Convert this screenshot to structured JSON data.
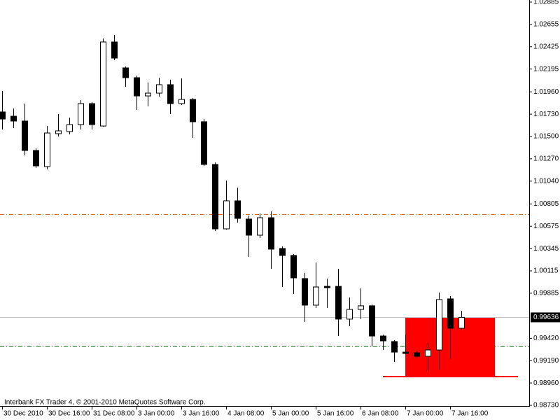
{
  "chart_data": {
    "type": "candlestick",
    "caption": "Interbank FX Trader 4, © 2001-2010 MetaQuotes Software Corp.",
    "categories": [
      "30 Dec 2010",
      null,
      null,
      null,
      "30 Dec 16:00",
      null,
      null,
      null,
      "31 Dec 08:00",
      null,
      null,
      null,
      "3 Jan 00:00",
      null,
      null,
      null,
      "3 Jan 16:00",
      null,
      null,
      null,
      "4 Jan 08:00",
      null,
      null,
      null,
      "5 Jan 00:00",
      null,
      null,
      null,
      "5 Jan 16:00",
      null,
      null,
      null,
      "6 Jan 08:00",
      null,
      null,
      null,
      "7 Jan 00:00",
      null,
      null,
      null,
      "7 Jan 16:00",
      null
    ],
    "open": [
      1.01753,
      1.01709,
      1.01659,
      1.01356,
      1.0119,
      1.01529,
      1.01551,
      1.01623,
      1.01839,
      1.01608,
      1.02474,
      1.02207,
      1.02106,
      1.01918,
      1.01947,
      1.02034,
      1.01839,
      1.01882,
      1.01652,
      1.01212,
      1.00548,
      1.00837,
      1.00649,
      1.00483,
      1.00663,
      1.00346,
      1.00274,
      1.00036,
      0.99762,
      0.99956,
      0.99956,
      0.99618,
      0.99718,
      0.99755,
      0.99444,
      0.99387,
      0.99278,
      0.99271,
      0.99235,
      0.993,
      0.99827,
      0.99524
    ],
    "high": [
      1.01969,
      1.01789,
      1.01839,
      1.01377,
      1.01608,
      1.01731,
      1.01695,
      1.01875,
      1.01854,
      1.0251,
      1.02546,
      1.02221,
      1.02128,
      1.02056,
      1.02106,
      1.02085,
      1.02099,
      1.01897,
      1.0168,
      1.01233,
      1.01046,
      1.00974,
      1.00685,
      1.00707,
      1.00728,
      1.00368,
      1.00288,
      1.00094,
      1.00202,
      1.00036,
      1.00137,
      0.99841,
      0.99935,
      0.99769,
      0.99458,
      0.99401,
      0.99458,
      0.99286,
      0.99372,
      0.99892,
      0.99855,
      0.99704
    ],
    "low": [
      1.01572,
      1.01587,
      1.01305,
      1.01176,
      1.01161,
      1.015,
      1.01522,
      1.01572,
      1.01572,
      1.016,
      1.02286,
      1.02012,
      1.01774,
      1.0181,
      1.01911,
      1.01731,
      1.01825,
      1.01486,
      1.01197,
      1.00526,
      1.00541,
      1.00613,
      1.00259,
      1.00454,
      1.00137,
      0.99949,
      0.99877,
      0.99589,
      0.99733,
      0.99733,
      0.99444,
      0.99545,
      0.99618,
      0.99336,
      0.993,
      0.99177,
      0.99257,
      0.99214,
      0.99084,
      0.99098,
      0.99206,
      0.99509
    ],
    "close": [
      1.0168,
      1.01659,
      1.01356,
      1.01197,
      1.01536,
      1.01558,
      1.01623,
      1.01839,
      1.01623,
      1.02474,
      1.02308,
      1.02106,
      1.01918,
      1.01947,
      1.02034,
      1.01839,
      1.01882,
      1.01652,
      1.01212,
      1.00548,
      1.00837,
      1.00656,
      1.00483,
      1.00663,
      1.00339,
      1.00274,
      1.00043,
      0.99762,
      0.99949,
      0.99942,
      0.99618,
      0.99718,
      0.99755,
      0.99444,
      0.99394,
      0.99278,
      0.99264,
      0.99235,
      0.993,
      0.9982,
      0.99524,
      0.99636
    ],
    "up_color": "#ffffff",
    "down_color": "#000000",
    "outline_color": "#000000",
    "ylim": [
      0.9873,
      1.02885
    ],
    "yticks": [
      1.02885,
      1.02655,
      1.02425,
      1.02195,
      {
        "value": 1.0196,
        "label": "1.01960"
      },
      {
        "value": 1.0173,
        "label": "1.01730"
      },
      {
        "value": 1.015,
        "label": "1.01500"
      },
      {
        "value": 1.0127,
        "label": "1.01270"
      },
      {
        "value": 1.0104,
        "label": "1.01040"
      },
      1.00805,
      1.00575,
      1.00345,
      1.00115,
      0.99885,
      {
        "value": 0.9942,
        "label": "0.99420"
      },
      {
        "value": 0.9919,
        "label": "0.99190"
      },
      {
        "value": 0.9896,
        "label": "0.98960"
      },
      {
        "value": 0.9873,
        "label": "0.98730"
      }
    ],
    "current_price": 0.99636,
    "current_price_color": "#c0c0c0",
    "levels": [
      {
        "value": 1.007,
        "color": "#d2691e",
        "style": "dashdot"
      },
      {
        "value": 0.99343,
        "color": "#006400",
        "style": "dashdot"
      }
    ],
    "rectangle": {
      "top": 0.99636,
      "bottom": 0.99026,
      "color": "#ff0000"
    },
    "grid": false
  }
}
